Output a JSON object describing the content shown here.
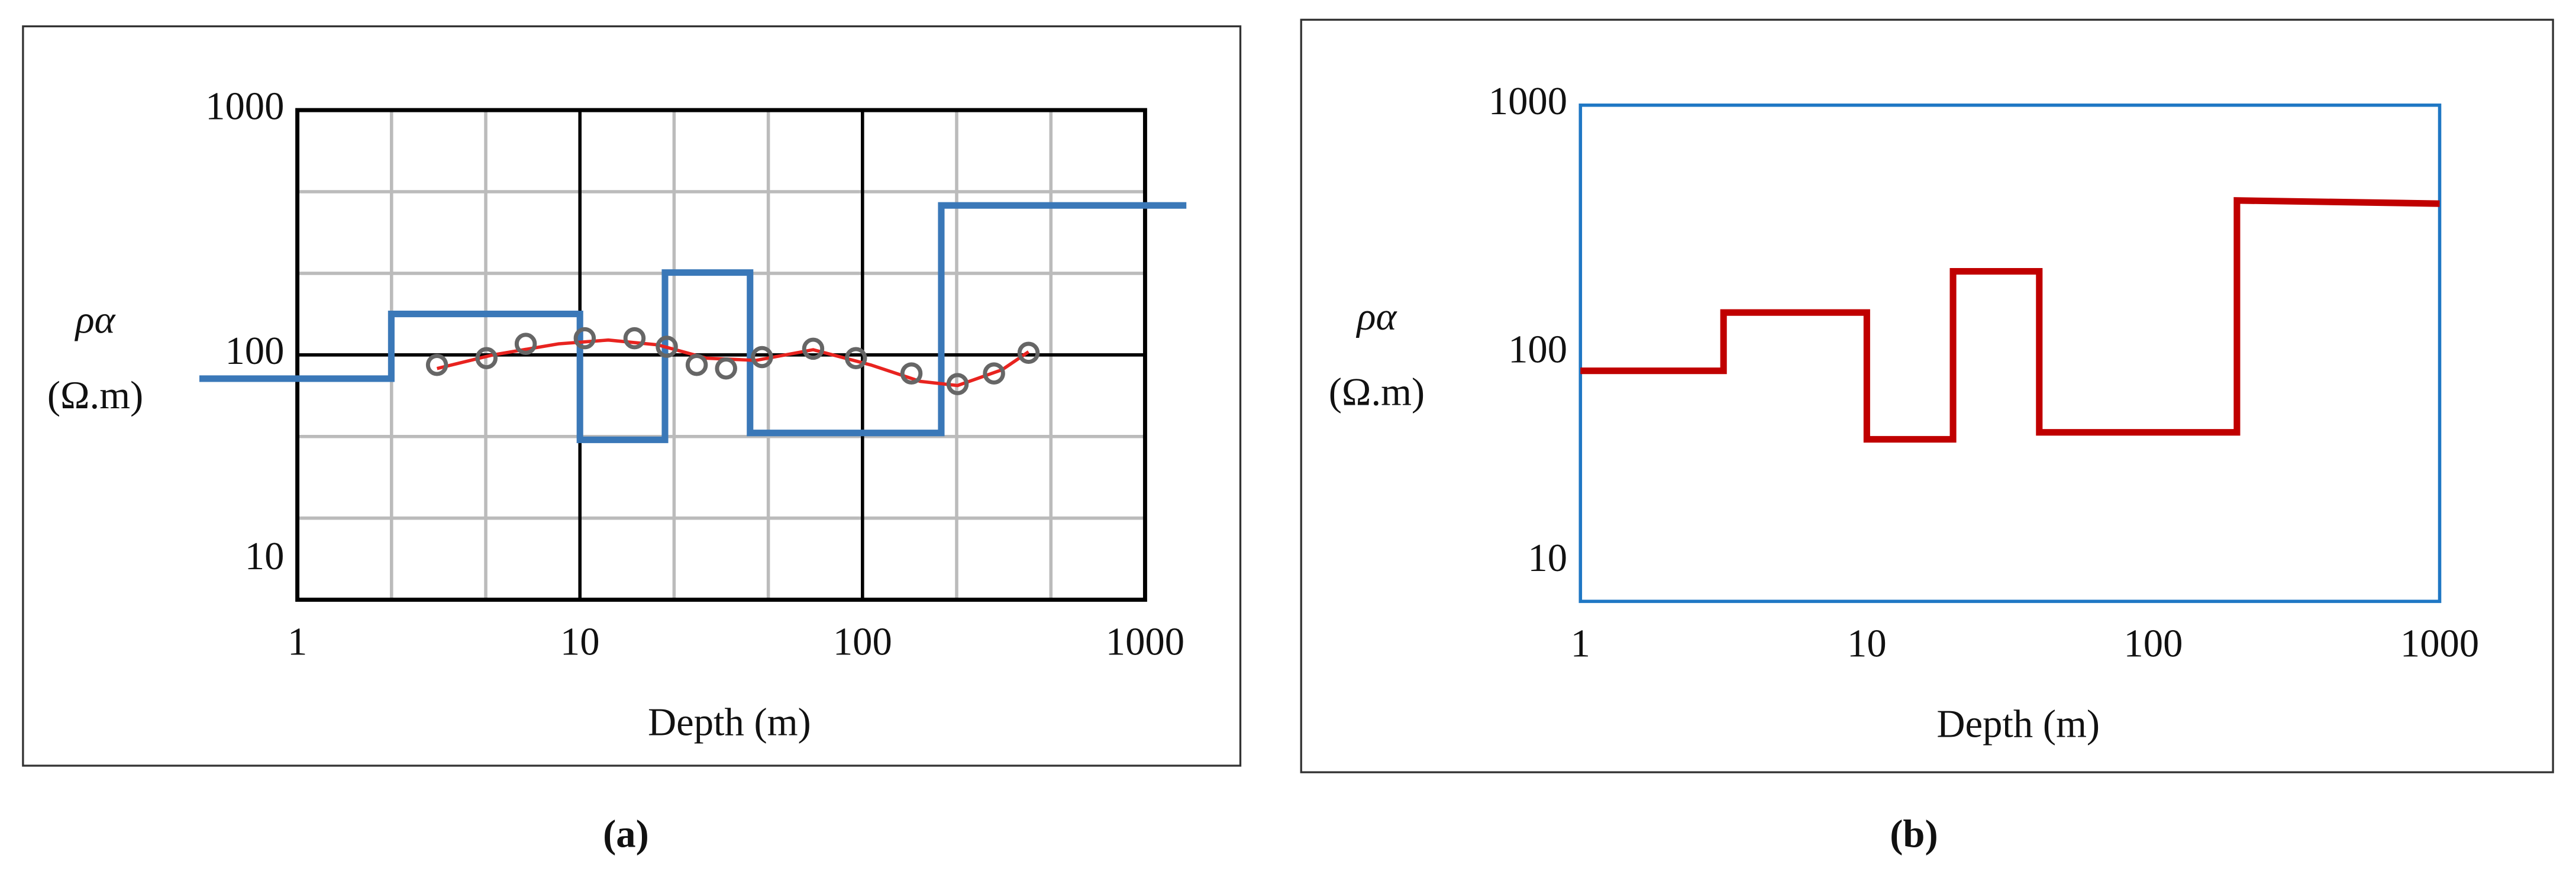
{
  "chart_data": [
    {
      "type": "line",
      "caption": "(a)",
      "xlabel": "Depth (m)",
      "ylabel": "ρα",
      "ylabel_unit": "(Ω.m)",
      "log_x": true,
      "log_y": true,
      "xlim": [
        1,
        1000
      ],
      "ylim": [
        10,
        1000
      ],
      "xticks": [
        1,
        10,
        100,
        1000
      ],
      "yticks": [
        10,
        100,
        1000
      ],
      "grid": true,
      "x_minor_grid": [
        2.154,
        4.642,
        21.54,
        46.42,
        215.4,
        464.2
      ],
      "y_minor_grid": [
        21.54,
        46.42,
        215.4,
        464.2
      ],
      "frame_color": "#000000",
      "series": [
        {
          "style": "line",
          "color": "#3a78b8",
          "width": 4,
          "x": [
            0.45,
            2.15,
            2.15,
            10,
            10,
            20,
            20,
            40,
            40,
            190,
            190,
            1400
          ],
          "values": [
            80,
            80,
            147,
            147,
            45,
            45,
            217,
            217,
            48,
            48,
            408,
            408
          ]
        },
        {
          "style": "line",
          "color": "#e8231f",
          "width": 2,
          "x": [
            3.12,
            4.92,
            8.4,
            12.6,
            18.8,
            28.0,
            41.9,
            66.9,
            107,
            160,
            217,
            312,
            387
          ],
          "values": [
            88,
            100,
            111,
            115,
            110,
            97,
            95,
            105,
            91,
            78,
            75,
            87,
            103
          ]
        },
        {
          "style": "markers",
          "color": "#666666",
          "x": [
            3.12,
            4.67,
            6.43,
            10.4,
            15.6,
            20.3,
            25.9,
            32.9,
            44.1,
            66.9,
            94.8,
            149,
            217,
            292,
            387
          ],
          "values": [
            91,
            97,
            111,
            117,
            117,
            108,
            91,
            88,
            98,
            106,
            97,
            84,
            76,
            84,
            102
          ]
        }
      ]
    },
    {
      "type": "line",
      "caption": "(b)",
      "xlabel": "Depth (m)",
      "ylabel": "ρα",
      "ylabel_unit": "(Ω.m)",
      "log_x": true,
      "log_y": true,
      "xlim": [
        1,
        1000
      ],
      "ylim": [
        10,
        1000
      ],
      "xticks": [
        1,
        10,
        100,
        1000
      ],
      "yticks": [
        10,
        100,
        1000
      ],
      "grid": false,
      "frame_color": "#1f77c4",
      "series": [
        {
          "style": "line",
          "color": "#c00000",
          "width": 4,
          "x": [
            1,
            3.16,
            3.16,
            10,
            10,
            20,
            20,
            40,
            40,
            196,
            196,
            1000
          ],
          "values": [
            85,
            85,
            146,
            146,
            45,
            45,
            214,
            214,
            48,
            48,
            413,
            401
          ]
        }
      ]
    }
  ]
}
